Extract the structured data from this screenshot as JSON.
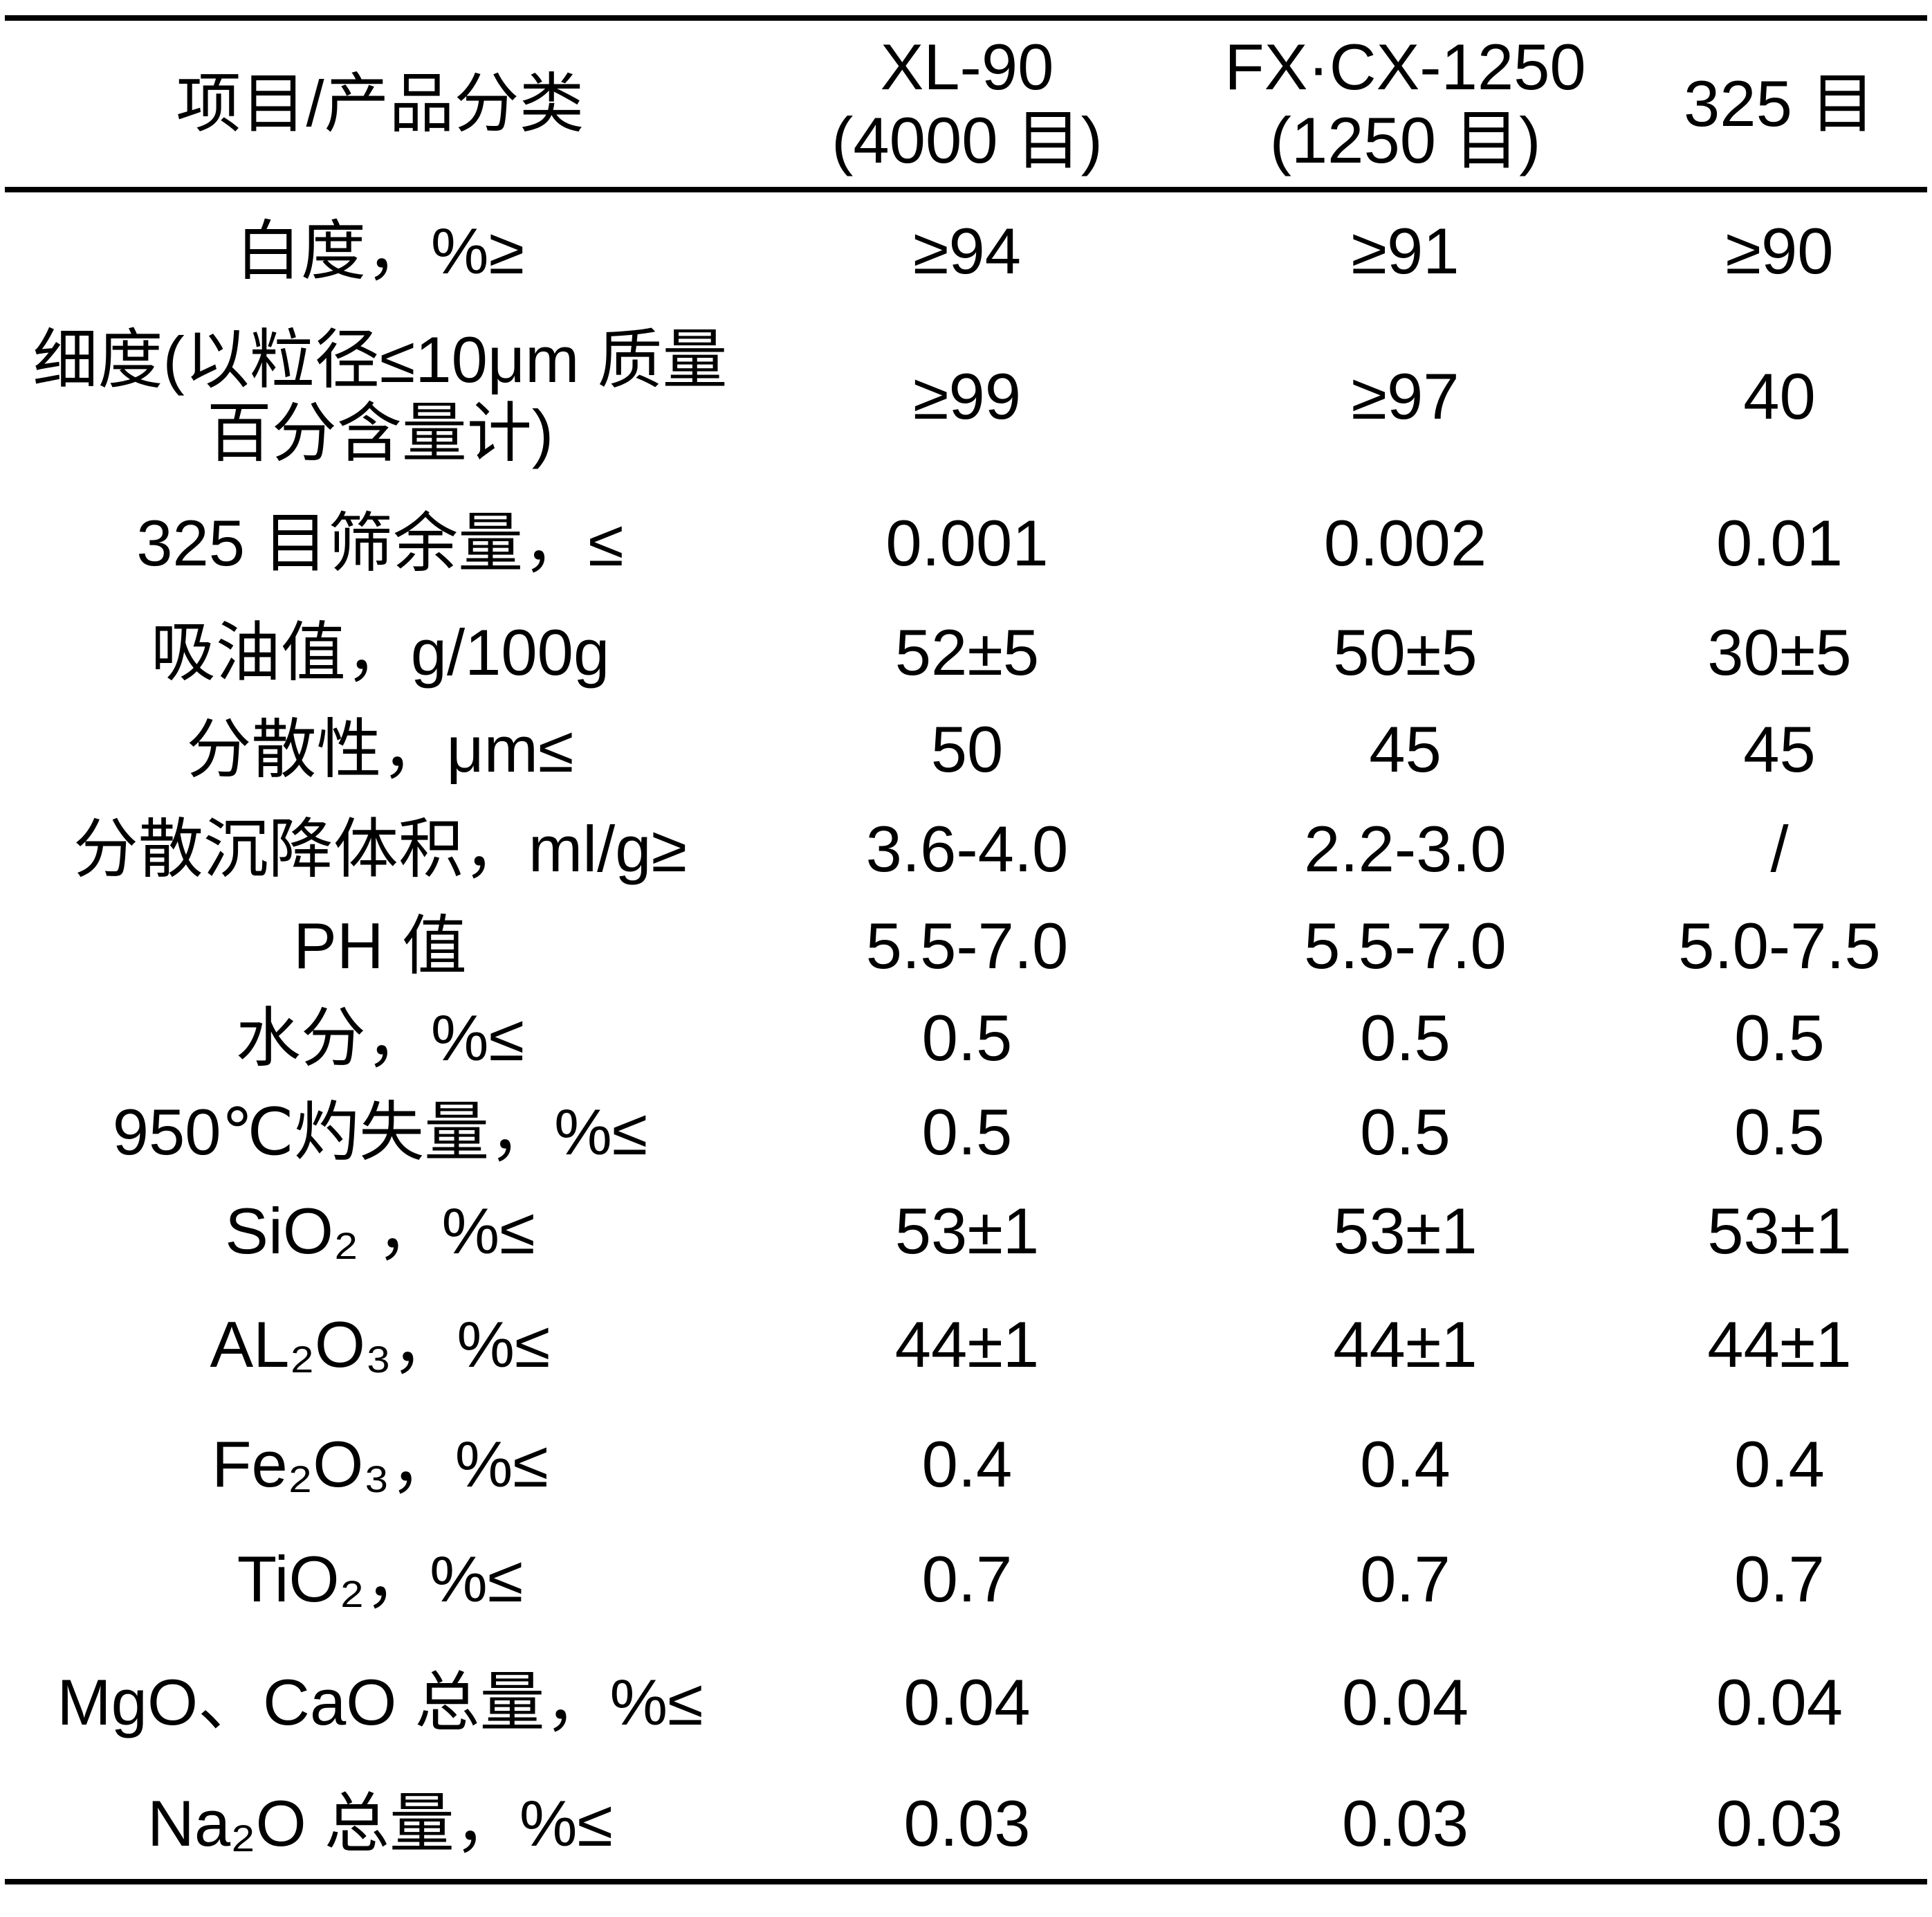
{
  "table": {
    "header": {
      "col0": "项目/产品分类",
      "col1": "XL-90\n(4000 目)",
      "col2": "FX·CX-1250\n(1250 目)",
      "col3": "325 目"
    },
    "rows": [
      {
        "label": "白度，%≥",
        "values": [
          "≥94",
          "≥91",
          "≥90"
        ]
      },
      {
        "label": "细度(以粒径≤10μm 质量\n百分含量计)",
        "values": [
          "≥99",
          "≥97",
          "40"
        ]
      },
      {
        "label": "325 目筛余量，≤",
        "values": [
          "0.001",
          "0.002",
          "0.01"
        ]
      },
      {
        "label": "吸油值，g/100g",
        "values": [
          "52±5",
          "50±5",
          "30±5"
        ]
      },
      {
        "label": "分散性，μm≤",
        "values": [
          "50",
          "45",
          "45"
        ]
      },
      {
        "label": "分散沉降体积，ml/g≥",
        "values": [
          "3.6-4.0",
          "2.2-3.0",
          "/"
        ]
      },
      {
        "label": "PH 值",
        "values": [
          "5.5-7.0",
          "5.5-7.0",
          "5.0-7.5"
        ]
      },
      {
        "label": "水分，%≤",
        "values": [
          "0.5",
          "0.5",
          "0.5"
        ]
      },
      {
        "label": "950℃灼失量，%≤",
        "values": [
          "0.5",
          "0.5",
          "0.5"
        ]
      },
      {
        "label": "SiO₂ ，%≤",
        "values": [
          "53±1",
          "53±1",
          "53±1"
        ]
      },
      {
        "label": "AL₂O₃，%≤",
        "values": [
          "44±1",
          "44±1",
          "44±1"
        ]
      },
      {
        "label": "Fe₂O₃，%≤",
        "values": [
          "0.4",
          "0.4",
          "0.4"
        ]
      },
      {
        "label": "TiO₂，%≤",
        "values": [
          "0.7",
          "0.7",
          "0.7"
        ]
      },
      {
        "label": "MgO、CaO 总量，%≤",
        "values": [
          "0.04",
          "0.04",
          "0.04"
        ]
      },
      {
        "label": "Na₂O 总量，%≤",
        "values": [
          "0.03",
          "0.03",
          "0.03"
        ]
      }
    ],
    "colors": {
      "text": "#000000",
      "background": "#ffffff",
      "border": "#000000"
    }
  }
}
